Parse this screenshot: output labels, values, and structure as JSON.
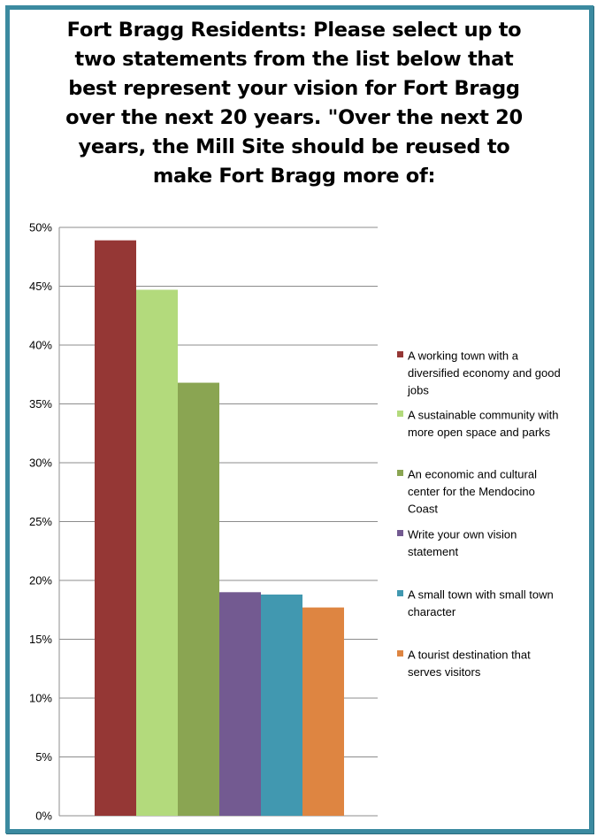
{
  "chart_data": {
    "type": "bar",
    "title_lines": [
      "Fort Bragg Residents: Please select up to",
      "two statements from the list below that",
      "best represent your vision for Fort Bragg",
      "over the next 20 years.  \"Over the next 20",
      "years, the Mill Site should be reused to",
      "make Fort Bragg more of:"
    ],
    "ylim": [
      0,
      50
    ],
    "y_ticks": [
      "0%",
      "5%",
      "10%",
      "15%",
      "20%",
      "25%",
      "30%",
      "35%",
      "40%",
      "45%",
      "50%"
    ],
    "y_tick_values": [
      0,
      5,
      10,
      15,
      20,
      25,
      30,
      35,
      40,
      45,
      50
    ],
    "grid": true,
    "legend_position": "right",
    "series": [
      {
        "name": "A working town with a diversified economy and good jobs",
        "legend_lines": [
          "A working town with a",
          "diversified economy and good",
          "jobs"
        ],
        "value": 48.9,
        "color": "#953735"
      },
      {
        "name": "A sustainable community with more open space and parks",
        "legend_lines": [
          "A sustainable community with",
          "more open space and parks"
        ],
        "value": 44.7,
        "color": "#b3da7c"
      },
      {
        "name": "An economic and cultural center for the Mendocino Coast",
        "legend_lines": [
          "An economic and cultural",
          "center for the Mendocino",
          "Coast"
        ],
        "value": 36.8,
        "color": "#8aa552"
      },
      {
        "name": "Write your own vision statement",
        "legend_lines": [
          "Write your own vision",
          "statement"
        ],
        "value": 19.0,
        "color": "#735a91"
      },
      {
        "name": "A small town with small town character",
        "legend_lines": [
          "A small town with small town",
          "character"
        ],
        "value": 18.8,
        "color": "#4198b0"
      },
      {
        "name": "A tourist destination that serves visitors",
        "legend_lines": [
          "A tourist destination that",
          "serves visitors"
        ],
        "value": 17.7,
        "color": "#de8541"
      }
    ]
  }
}
